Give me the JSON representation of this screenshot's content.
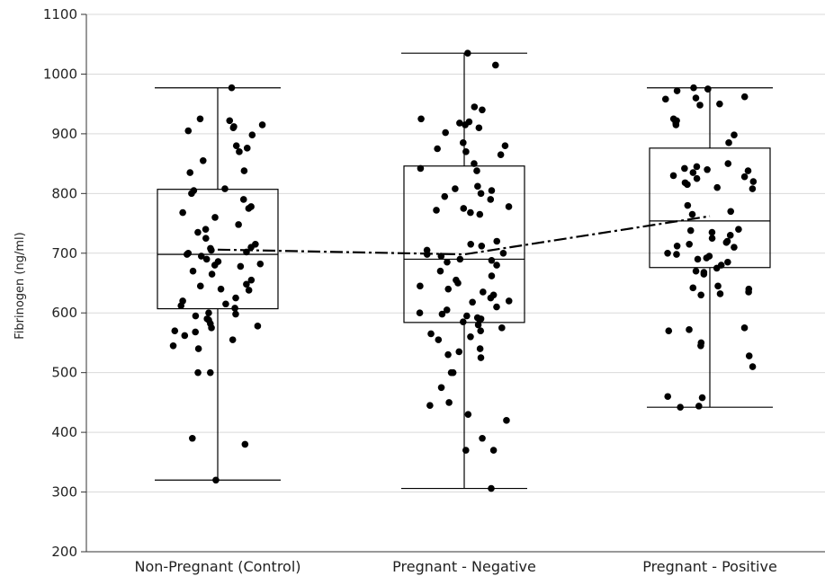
{
  "chart_data": {
    "type": "box",
    "title": "",
    "xlabel": "",
    "ylabel": "Fibrinogen (ng/ml)",
    "ylim": [
      200,
      1100
    ],
    "yticks": [
      200,
      300,
      400,
      500,
      600,
      700,
      800,
      900,
      1000,
      1100
    ],
    "grid": "horizontal",
    "categories": [
      "Non-Pregnant (Control)",
      "Pregnant - Negative",
      "Pregnant - Positive"
    ],
    "boxes": [
      {
        "min": 320,
        "q1": 607,
        "median": 698,
        "q3": 807,
        "max": 977,
        "mean": 706
      },
      {
        "min": 306,
        "q1": 584,
        "median": 690,
        "q3": 846,
        "max": 1035,
        "mean": 698
      },
      {
        "min": 442,
        "q1": 676,
        "median": 754,
        "q3": 876,
        "max": 977,
        "mean": 762
      }
    ],
    "mean_line": {
      "style": "dash-dot",
      "values": [
        706,
        698,
        762
      ]
    },
    "points": [
      [
        977,
        925,
        922,
        915,
        912,
        910,
        905,
        898,
        880,
        876,
        870,
        855,
        838,
        835,
        808,
        805,
        800,
        790,
        778,
        775,
        768,
        760,
        748,
        740,
        735,
        725,
        715,
        710,
        708,
        705,
        702,
        700,
        698,
        695,
        690,
        686,
        682,
        680,
        678,
        670,
        665,
        655,
        648,
        645,
        640,
        638,
        625,
        620,
        615,
        612,
        608,
        600,
        598,
        595,
        590,
        588,
        582,
        578,
        575,
        570,
        568,
        562,
        555,
        545,
        540,
        500,
        500,
        390,
        380,
        320
      ],
      [
        1035,
        1015,
        945,
        940,
        925,
        920,
        918,
        915,
        910,
        902,
        885,
        880,
        875,
        870,
        865,
        850,
        842,
        838,
        812,
        808,
        805,
        800,
        795,
        790,
        778,
        775,
        772,
        768,
        765,
        720,
        715,
        712,
        705,
        700,
        698,
        695,
        690,
        688,
        685,
        680,
        670,
        662,
        655,
        650,
        645,
        640,
        635,
        630,
        625,
        620,
        618,
        610,
        605,
        600,
        598,
        595,
        592,
        590,
        588,
        585,
        580,
        575,
        570,
        565,
        560,
        555,
        540,
        535,
        530,
        525,
        500,
        500,
        475,
        450,
        445,
        430,
        420,
        390,
        370,
        370,
        306
      ],
      [
        977,
        975,
        975,
        972,
        962,
        960,
        958,
        950,
        948,
        925,
        922,
        918,
        915,
        898,
        885,
        850,
        845,
        842,
        840,
        838,
        835,
        830,
        828,
        825,
        820,
        818,
        815,
        810,
        808,
        780,
        770,
        765,
        740,
        738,
        735,
        730,
        725,
        720,
        718,
        715,
        712,
        710,
        700,
        698,
        695,
        692,
        690,
        685,
        680,
        675,
        670,
        668,
        665,
        645,
        642,
        640,
        635,
        632,
        630,
        575,
        572,
        570,
        550,
        545,
        528,
        510,
        460,
        458,
        444,
        442
      ]
    ]
  }
}
